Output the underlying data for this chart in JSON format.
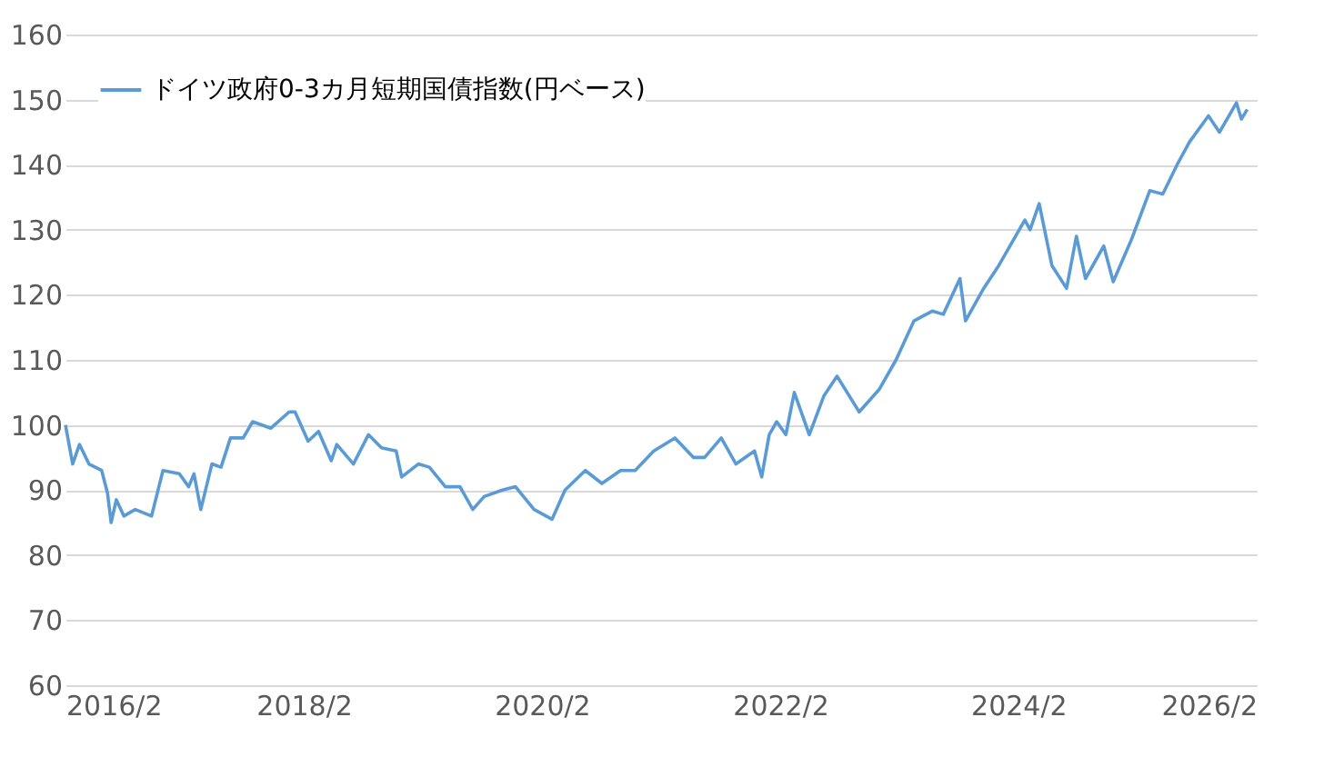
{
  "chart_data": {
    "type": "line",
    "x": [
      "2016-02-01",
      "2016-02-23",
      "2016-03-15",
      "2016-04-13",
      "2016-05-22",
      "2016-06-09",
      "2016-06-20",
      "2016-07-06",
      "2016-07-29",
      "2016-09-02",
      "2016-10-22",
      "2016-11-26",
      "2017-01-15",
      "2017-02-13",
      "2017-03-01",
      "2017-03-22",
      "2017-04-25",
      "2017-05-23",
      "2017-06-21",
      "2017-07-30",
      "2017-08-28",
      "2017-10-23",
      "2017-12-18",
      "2018-01-05",
      "2018-02-14",
      "2018-03-18",
      "2018-04-26",
      "2018-05-13",
      "2018-07-03",
      "2018-08-18",
      "2018-09-27",
      "2018-11-11",
      "2018-11-28",
      "2019-01-18",
      "2019-02-21",
      "2019-04-11",
      "2019-05-26",
      "2019-07-04",
      "2019-08-08",
      "2019-10-03",
      "2019-11-12",
      "2020-01-08",
      "2020-03-03",
      "2020-04-12",
      "2020-06-13",
      "2020-08-03",
      "2020-09-29",
      "2020-11-13",
      "2021-01-09",
      "2021-03-15",
      "2021-05-11",
      "2021-06-14",
      "2021-08-04",
      "2021-09-18",
      "2021-11-14",
      "2021-12-06",
      "2021-12-29",
      "2022-01-21",
      "2022-02-18",
      "2022-03-16",
      "2022-05-01",
      "2022-06-15",
      "2022-07-25",
      "2022-10-01",
      "2022-12-02",
      "2023-01-22",
      "2023-03-18",
      "2023-05-13",
      "2023-06-16",
      "2023-08-06",
      "2023-08-23",
      "2023-10-18",
      "2023-12-03",
      "2024-01-12",
      "2024-02-21",
      "2024-03-08",
      "2024-04-05",
      "2024-05-14",
      "2024-06-28",
      "2024-07-28",
      "2024-08-25",
      "2024-10-20",
      "2024-11-18",
      "2025-01-13",
      "2025-03-10",
      "2025-04-19",
      "2025-06-02",
      "2025-07-10",
      "2025-09-06",
      "2025-10-10",
      "2025-12-01",
      "2025-12-16",
      "2026-01-03"
    ],
    "series": [
      {
        "name": "ドイツ政府0-3カ月短期国債指数(円ベース)",
        "color": "#5b9bd5",
        "values": [
          100,
          94,
          97,
          94,
          93,
          89.5,
          85,
          88.5,
          86,
          87,
          86,
          93,
          92.5,
          90.5,
          92.5,
          87,
          94,
          93.5,
          98,
          98,
          100.5,
          99.5,
          102,
          102,
          97.5,
          99,
          94.5,
          97,
          94,
          98.5,
          96.5,
          96,
          92,
          94,
          93.5,
          90.5,
          90.5,
          87,
          89,
          90,
          90.5,
          87,
          85.5,
          90,
          93,
          91,
          93,
          93,
          96,
          98,
          95,
          95,
          98,
          94,
          96,
          92,
          98.5,
          100.5,
          98.5,
          105,
          98.5,
          104.5,
          107.5,
          102,
          105.5,
          110,
          116,
          117.5,
          117,
          122.5,
          116,
          121,
          124.5,
          128,
          131.5,
          130,
          134,
          124.5,
          121,
          129,
          122.5,
          127.5,
          122,
          128.5,
          136,
          135.5,
          140,
          143.5,
          147.5,
          145,
          149.5,
          147,
          148.5
        ]
      }
    ],
    "xlim": [
      "2016-02-01",
      "2026-02-01"
    ],
    "xticks": [
      {
        "value": "2016-02-01",
        "label": "2016/2"
      },
      {
        "value": "2018-02-01",
        "label": "2018/2"
      },
      {
        "value": "2020-02-01",
        "label": "2020/2"
      },
      {
        "value": "2022-02-01",
        "label": "2022/2"
      },
      {
        "value": "2024-02-01",
        "label": "2024/2"
      },
      {
        "value": "2026-02-01",
        "label": "2026/2"
      }
    ],
    "ylim": [
      60,
      160
    ],
    "yticks": [
      60,
      70,
      80,
      90,
      100,
      110,
      120,
      130,
      140,
      150,
      160
    ],
    "grid": "y",
    "legend": "top left",
    "marker": "none",
    "line_style": "solid"
  }
}
